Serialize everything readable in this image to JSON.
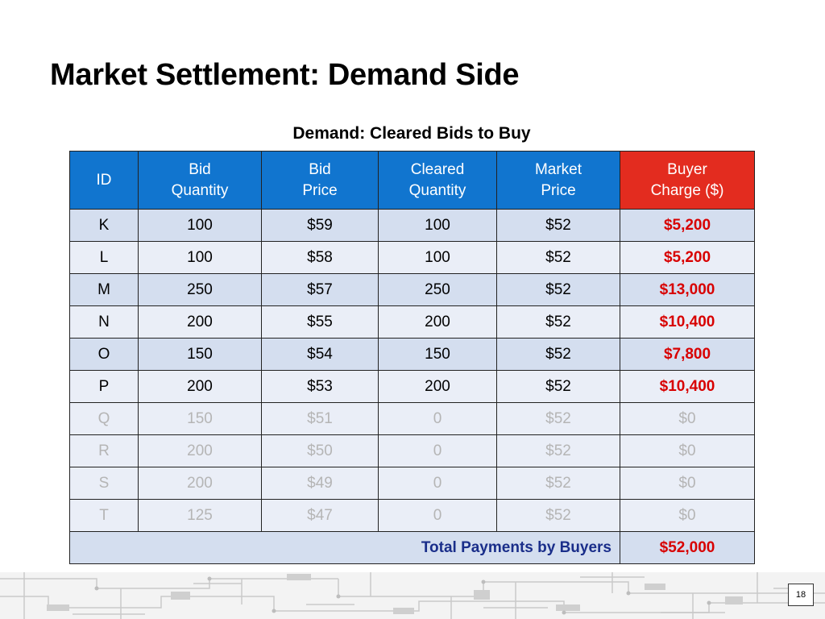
{
  "slide": {
    "title": "Market Settlement:  Demand Side",
    "page_number": "18"
  },
  "table": {
    "caption": "Demand:  Cleared Bids to Buy",
    "headers": {
      "id": "ID",
      "bid_quantity_1": "Bid",
      "bid_quantity_2": "Quantity",
      "bid_price_1": "Bid",
      "bid_price_2": "Price",
      "cleared_quantity_1": "Cleared",
      "cleared_quantity_2": "Quantity",
      "market_price_1": "Market",
      "market_price_2": "Price",
      "buyer_charge_1": "Buyer",
      "buyer_charge_2": "Charge ($)"
    },
    "rows": [
      {
        "id": "K",
        "bid_quantity": "100",
        "bid_price": "$59",
        "cleared_quantity": "100",
        "market_price": "$52",
        "buyer_charge": "$5,200"
      },
      {
        "id": "L",
        "bid_quantity": "100",
        "bid_price": "$58",
        "cleared_quantity": "100",
        "market_price": "$52",
        "buyer_charge": "$5,200"
      },
      {
        "id": "M",
        "bid_quantity": "250",
        "bid_price": "$57",
        "cleared_quantity": "250",
        "market_price": "$52",
        "buyer_charge": "$13,000"
      },
      {
        "id": "N",
        "bid_quantity": "200",
        "bid_price": "$55",
        "cleared_quantity": "200",
        "market_price": "$52",
        "buyer_charge": "$10,400"
      },
      {
        "id": "O",
        "bid_quantity": "150",
        "bid_price": "$54",
        "cleared_quantity": "150",
        "market_price": "$52",
        "buyer_charge": "$7,800"
      },
      {
        "id": "P",
        "bid_quantity": "200",
        "bid_price": "$53",
        "cleared_quantity": "200",
        "market_price": "$52",
        "buyer_charge": "$10,400"
      },
      {
        "id": "Q",
        "bid_quantity": "150",
        "bid_price": "$51",
        "cleared_quantity": "0",
        "market_price": "$52",
        "buyer_charge": "$0"
      },
      {
        "id": "R",
        "bid_quantity": "200",
        "bid_price": "$50",
        "cleared_quantity": "0",
        "market_price": "$52",
        "buyer_charge": "$0"
      },
      {
        "id": "S",
        "bid_quantity": "200",
        "bid_price": "$49",
        "cleared_quantity": "0",
        "market_price": "$52",
        "buyer_charge": "$0"
      },
      {
        "id": "T",
        "bid_quantity": "125",
        "bid_price": "$47",
        "cleared_quantity": "0",
        "market_price": "$52",
        "buyer_charge": "$0"
      }
    ],
    "total": {
      "label": "Total Payments by Buyers",
      "value": "$52,000"
    }
  },
  "colors": {
    "header_blue": "#1175cf",
    "header_red": "#e32c1f",
    "charge_red": "#d80000",
    "total_label_blue": "#1a2e8a",
    "row_shade_a": "#d4deef",
    "row_shade_b": "#eaeef7",
    "uncleared_gray": "#b5b5b5"
  }
}
